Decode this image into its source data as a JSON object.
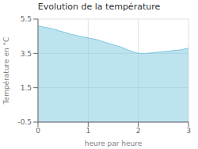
{
  "chart_data": {
    "type": "area",
    "title": "Evolution de la température",
    "x_label": "heure par heure",
    "y_label": "Température en °C",
    "x": [
      0,
      0.17,
      0.33,
      0.5,
      0.67,
      0.83,
      1.0,
      1.17,
      1.33,
      1.5,
      1.67,
      1.83,
      2.0,
      2.17,
      2.33,
      2.5,
      2.67,
      2.83,
      3.0
    ],
    "values": [
      5.1,
      5.0,
      4.9,
      4.75,
      4.6,
      4.5,
      4.4,
      4.3,
      4.15,
      4.0,
      3.85,
      3.65,
      3.5,
      3.5,
      3.55,
      3.6,
      3.65,
      3.7,
      3.8
    ],
    "color": "#7cc8e0",
    "xlim": [
      0,
      3
    ],
    "ylim": [
      -0.5,
      5.5
    ],
    "xticks": [
      0,
      1,
      2,
      3
    ],
    "yticks": [
      -0.5,
      1.5,
      3.5,
      5.5
    ],
    "grid": true
  }
}
